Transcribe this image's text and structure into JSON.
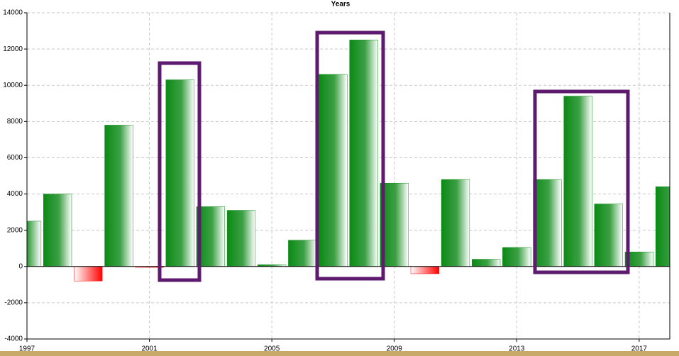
{
  "chart_data": {
    "type": "bar",
    "title": "Years",
    "x": [
      1997,
      1998,
      1999,
      2000,
      2001,
      2002,
      2003,
      2004,
      2005,
      2006,
      2007,
      2008,
      2009,
      2010,
      2011,
      2012,
      2013,
      2014,
      2015,
      2016,
      2017,
      2018
    ],
    "values": [
      2500,
      4000,
      -800,
      7800,
      -50,
      10300,
      3300,
      3100,
      100,
      1450,
      10600,
      12500,
      4600,
      -400,
      4800,
      400,
      1050,
      4800,
      9400,
      3450,
      800,
      4400
    ],
    "color": "#0a8a14",
    "negative_color": "#ff0000",
    "xlim": [
      1997,
      2018
    ],
    "xticks": [
      1997,
      2001,
      2005,
      2009,
      2013,
      2017
    ],
    "ylim": [
      -4000,
      14000
    ],
    "yticks": [
      -4000,
      -2000,
      0,
      2000,
      4000,
      6000,
      8000,
      10000,
      12000,
      14000
    ],
    "grid": true
  }
}
